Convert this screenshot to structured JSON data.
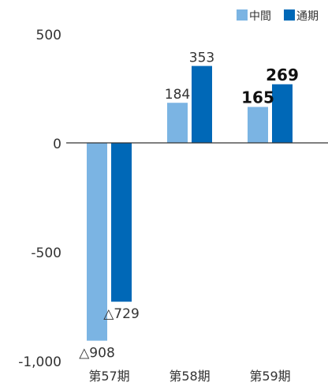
{
  "chart_data": {
    "type": "bar",
    "categories": [
      "第57期",
      "第58期",
      "第59期"
    ],
    "series": [
      {
        "name": "中間",
        "color": "#7bb4e3",
        "values": [
          -908,
          184,
          165
        ],
        "labels": [
          "△908",
          "184",
          "165"
        ]
      },
      {
        "name": "通期",
        "color": "#0068b7",
        "values": [
          -729,
          353,
          269
        ],
        "labels": [
          "△729",
          "353",
          "269"
        ]
      }
    ],
    "ylim": [
      -1000,
      500
    ],
    "yticks": [
      500,
      0,
      -500,
      -1000
    ],
    "ytick_labels": [
      "500",
      "0",
      "-500",
      "-1,000"
    ],
    "bold_labels_category": "第59期",
    "legend": "top-right"
  }
}
